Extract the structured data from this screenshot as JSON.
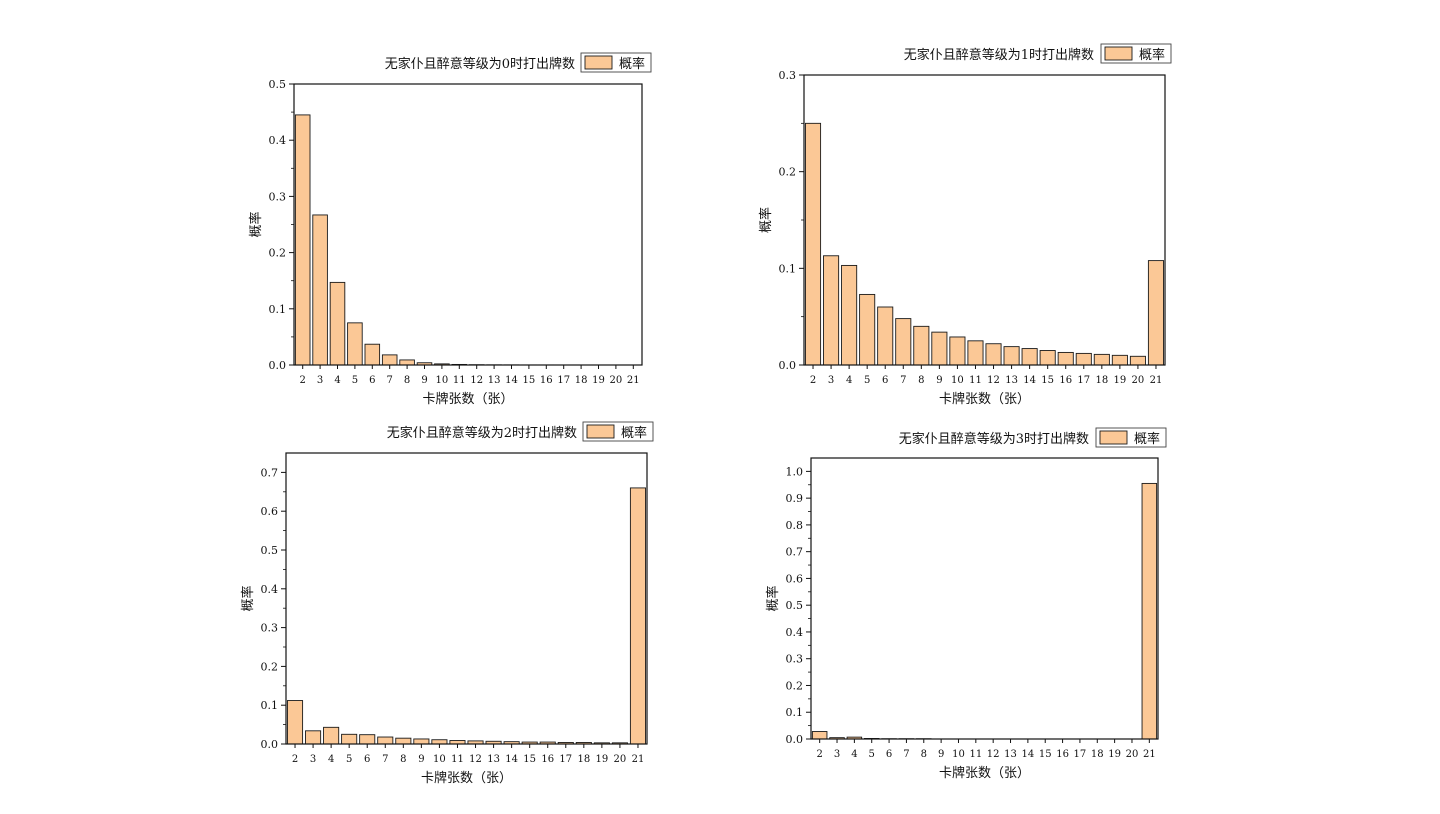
{
  "chart_data": [
    {
      "type": "bar",
      "title": "无家仆且醉意等级为0时打出牌数",
      "xlabel": "卡牌张数（张）",
      "ylabel": "概率",
      "legend": [
        "概率"
      ],
      "legend_position": "top-right",
      "bar_color": "#fbc896",
      "ylim": [
        0,
        0.5
      ],
      "yticks": [
        "0.0",
        "0.1",
        "0.2",
        "0.3",
        "0.4",
        "0.5"
      ],
      "categories": [
        "2",
        "3",
        "4",
        "5",
        "6",
        "7",
        "8",
        "9",
        "10",
        "11",
        "12",
        "13",
        "14",
        "15",
        "16",
        "17",
        "18",
        "19",
        "20",
        "21"
      ],
      "series": [
        {
          "name": "概率",
          "values": [
            0.445,
            0.267,
            0.147,
            0.075,
            0.037,
            0.018,
            0.009,
            0.004,
            0.002,
            0.001,
            0.0005,
            0.0003,
            0.0002,
            0.0001,
            0.0001,
            0.0,
            0.0,
            0.0,
            0.0,
            0.0
          ]
        }
      ]
    },
    {
      "type": "bar",
      "title": "无家仆且醉意等级为1时打出牌数",
      "xlabel": "卡牌张数（张）",
      "ylabel": "概率",
      "legend": [
        "概率"
      ],
      "legend_position": "top-right",
      "bar_color": "#fbc896",
      "ylim": [
        0,
        0.3
      ],
      "yticks": [
        "0.0",
        "0.1",
        "0.2",
        "0.3"
      ],
      "categories": [
        "2",
        "3",
        "4",
        "5",
        "6",
        "7",
        "8",
        "9",
        "10",
        "11",
        "12",
        "13",
        "14",
        "15",
        "16",
        "17",
        "18",
        "19",
        "20",
        "21"
      ],
      "series": [
        {
          "name": "概率",
          "values": [
            0.25,
            0.113,
            0.103,
            0.073,
            0.06,
            0.048,
            0.04,
            0.034,
            0.029,
            0.025,
            0.022,
            0.019,
            0.017,
            0.015,
            0.013,
            0.012,
            0.011,
            0.01,
            0.009,
            0.108
          ]
        }
      ]
    },
    {
      "type": "bar",
      "title": "无家仆且醉意等级为2时打出牌数",
      "xlabel": "卡牌张数（张）",
      "ylabel": "概率",
      "legend": [
        "概率"
      ],
      "legend_position": "top-right",
      "bar_color": "#fbc896",
      "ylim": [
        0,
        0.75
      ],
      "yticks": [
        "0.0",
        "0.1",
        "0.2",
        "0.3",
        "0.4",
        "0.5",
        "0.6",
        "0.7"
      ],
      "categories": [
        "2",
        "3",
        "4",
        "5",
        "6",
        "7",
        "8",
        "9",
        "10",
        "11",
        "12",
        "13",
        "14",
        "15",
        "16",
        "17",
        "18",
        "19",
        "20",
        "21"
      ],
      "series": [
        {
          "name": "概率",
          "values": [
            0.112,
            0.034,
            0.043,
            0.025,
            0.024,
            0.018,
            0.015,
            0.013,
            0.011,
            0.009,
            0.008,
            0.007,
            0.006,
            0.005,
            0.005,
            0.004,
            0.004,
            0.003,
            0.003,
            0.66
          ]
        }
      ]
    },
    {
      "type": "bar",
      "title": "无家仆且醉意等级为3时打出牌数",
      "xlabel": "卡牌张数（张）",
      "ylabel": "概率",
      "legend": [
        "概率"
      ],
      "legend_position": "top-right",
      "bar_color": "#fbc896",
      "ylim": [
        0,
        1.05
      ],
      "yticks": [
        "0.0",
        "0.1",
        "0.2",
        "0.3",
        "0.4",
        "0.5",
        "0.6",
        "0.7",
        "0.8",
        "0.9",
        "1.0"
      ],
      "categories": [
        "2",
        "3",
        "4",
        "5",
        "6",
        "7",
        "8",
        "9",
        "10",
        "11",
        "12",
        "13",
        "14",
        "15",
        "16",
        "17",
        "18",
        "19",
        "20",
        "21"
      ],
      "series": [
        {
          "name": "概率",
          "values": [
            0.028,
            0.005,
            0.007,
            0.002,
            0.001,
            0.001,
            0.001,
            0.0,
            0.0,
            0.0,
            0.0,
            0.0,
            0.0,
            0.0,
            0.0,
            0.0,
            0.0,
            0.0,
            0.0,
            0.955
          ]
        }
      ]
    }
  ]
}
